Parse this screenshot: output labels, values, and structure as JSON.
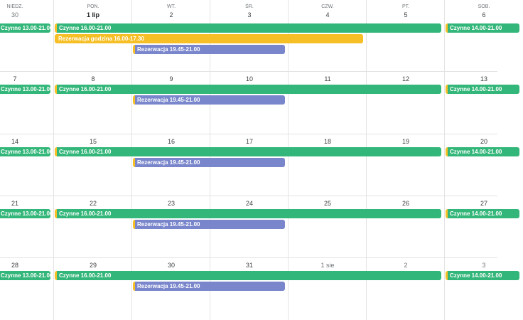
{
  "colors": {
    "green": "#33b679",
    "orange": "#f6bf26",
    "purple": "#7986cb"
  },
  "weekdays": [
    "NIEDZ.",
    "PON.",
    "WT.",
    "ŚR.",
    "CZW.",
    "PT.",
    "SOB."
  ],
  "weeks": [
    {
      "days": [
        {
          "label": "30",
          "style": "muted"
        },
        {
          "label": "1 lip",
          "style": "bold"
        },
        {
          "label": "2"
        },
        {
          "label": "3"
        },
        {
          "label": "4"
        },
        {
          "label": "5"
        },
        {
          "label": "6"
        }
      ],
      "events": [
        {
          "title": "Czynne 13.00-21.00",
          "start": 0,
          "end": 0,
          "lane": 0,
          "color": "green",
          "clipped_left": true
        },
        {
          "title": "Czynne 16.00-21.00",
          "start": 1,
          "end": 5,
          "lane": 0,
          "color": "green",
          "accent": true
        },
        {
          "title": "Czynne 14.00-21.00",
          "start": 6,
          "end": 6,
          "lane": 0,
          "color": "green",
          "accent": true
        },
        {
          "title": "Rezerwacja godzina 16.00-17.30",
          "start": 1,
          "end": 4,
          "lane": 1,
          "color": "orange"
        },
        {
          "title": "Rezerwacja 19.45-21.00",
          "start": 2,
          "end": 3,
          "lane": 2,
          "color": "purple",
          "accent": true
        }
      ]
    },
    {
      "days": [
        {
          "label": "7"
        },
        {
          "label": "8"
        },
        {
          "label": "9"
        },
        {
          "label": "10"
        },
        {
          "label": "11"
        },
        {
          "label": "12"
        },
        {
          "label": "13"
        }
      ],
      "events": [
        {
          "title": "Czynne 13.00-21.00",
          "start": 0,
          "end": 0,
          "lane": 0,
          "color": "green",
          "clipped_left": true
        },
        {
          "title": "Czynne 16.00-21.00",
          "start": 1,
          "end": 5,
          "lane": 0,
          "color": "green",
          "accent": true
        },
        {
          "title": "Czynne 14.00-21.00",
          "start": 6,
          "end": 6,
          "lane": 0,
          "color": "green",
          "accent": true
        },
        {
          "title": "Rezerwacja 19.45-21.00",
          "start": 2,
          "end": 3,
          "lane": 1,
          "color": "purple",
          "accent": true
        }
      ]
    },
    {
      "days": [
        {
          "label": "14"
        },
        {
          "label": "15"
        },
        {
          "label": "16"
        },
        {
          "label": "17"
        },
        {
          "label": "18"
        },
        {
          "label": "19"
        },
        {
          "label": "20"
        }
      ],
      "events": [
        {
          "title": "Czynne 13.00-21.00",
          "start": 0,
          "end": 0,
          "lane": 0,
          "color": "green",
          "clipped_left": true
        },
        {
          "title": "Czynne 16.00-21.00",
          "start": 1,
          "end": 5,
          "lane": 0,
          "color": "green",
          "accent": true
        },
        {
          "title": "Czynne 14.00-21.00",
          "start": 6,
          "end": 6,
          "lane": 0,
          "color": "green",
          "accent": true
        },
        {
          "title": "Rezerwacja 19.45-21.00",
          "start": 2,
          "end": 3,
          "lane": 1,
          "color": "purple",
          "accent": true
        }
      ]
    },
    {
      "days": [
        {
          "label": "21"
        },
        {
          "label": "22"
        },
        {
          "label": "23"
        },
        {
          "label": "24"
        },
        {
          "label": "25"
        },
        {
          "label": "26"
        },
        {
          "label": "27"
        }
      ],
      "events": [
        {
          "title": "Czynne 13.00-21.00",
          "start": 0,
          "end": 0,
          "lane": 0,
          "color": "green",
          "clipped_left": true
        },
        {
          "title": "Czynne 16.00-21.00",
          "start": 1,
          "end": 5,
          "lane": 0,
          "color": "green",
          "accent": true
        },
        {
          "title": "Czynne 14.00-21.00",
          "start": 6,
          "end": 6,
          "lane": 0,
          "color": "green",
          "accent": true
        },
        {
          "title": "Rezerwacja 19.45-21.00",
          "start": 2,
          "end": 3,
          "lane": 1,
          "color": "purple",
          "accent": true
        }
      ]
    },
    {
      "days": [
        {
          "label": "28"
        },
        {
          "label": "29"
        },
        {
          "label": "30"
        },
        {
          "label": "31"
        },
        {
          "label": "1 sie",
          "style": "muted"
        },
        {
          "label": "2",
          "style": "muted"
        },
        {
          "label": "3",
          "style": "muted"
        }
      ],
      "events": [
        {
          "title": "Czynne 13.00-21.00",
          "start": 0,
          "end": 0,
          "lane": 0,
          "color": "green",
          "clipped_left": true
        },
        {
          "title": "Czynne 16.00-21.00",
          "start": 1,
          "end": 5,
          "lane": 0,
          "color": "green",
          "accent": true
        },
        {
          "title": "Czynne 14.00-21.00",
          "start": 6,
          "end": 6,
          "lane": 0,
          "color": "green",
          "accent": true
        },
        {
          "title": "Rezerwacja 19.45-21.00",
          "start": 2,
          "end": 3,
          "lane": 1,
          "color": "purple",
          "accent": true
        }
      ]
    }
  ]
}
